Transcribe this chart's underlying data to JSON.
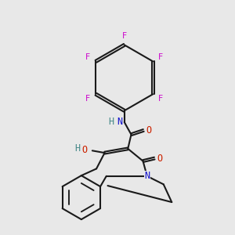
{
  "bg_color": "#e8e8e8",
  "bond_color": "#1a1a1a",
  "bond_width": 1.5,
  "atom_colors": {
    "N": "#1010cc",
    "O": "#cc2200",
    "F": "#cc00cc",
    "H_O": "#448888",
    "H_N": "#448888"
  },
  "figsize": [
    3.0,
    3.0
  ],
  "dpi": 100
}
